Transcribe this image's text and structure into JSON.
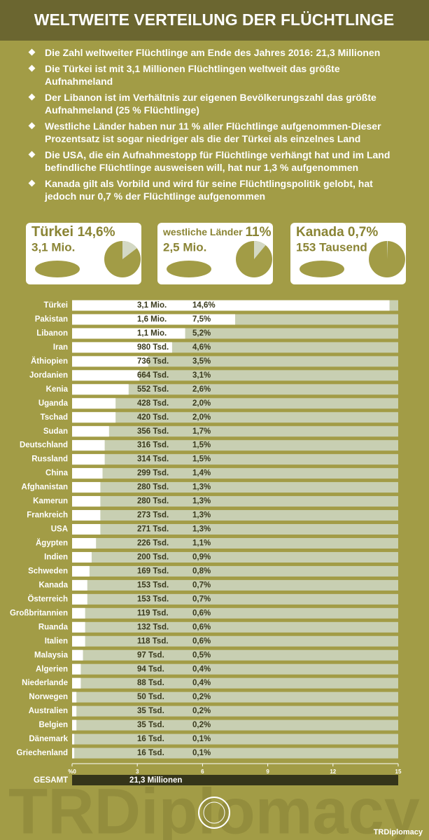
{
  "header": {
    "title": "WELTWEITE VERTEILUNG DER FLÜCHTLINGE"
  },
  "bullets": [
    "Die Zahl weltweiter Flüchtlinge am Ende des Jahres 2016: 21,3 Millionen",
    "Die Türkei ist mit 3,1 Millionen Flüchtlingen weltweit das größte Aufnahmeland",
    "Der Libanon ist im Verhältnis zur eigenen Bevölkerungszahl das größte Aufnahmeland (25 % Flüchtlinge)",
    "Westliche Länder haben nur 11 % aller Flüchtlinge aufgenommen-Dieser Prozentsatz ist sogar niedriger als die der Türkei als einzelnes Land",
    "Die USA, die ein Aufnahmestopp für Flüchtlinge verhängt hat und im Land befindliche Flüchtlinge ausweisen will, hat nur 1,3 % aufgenommen",
    "Kanada gilt als Vorbild und wird für seine Flüchtlingspolitik gelobt, hat jedoch nur 0,7 % der Flüchtlinge aufgenommen"
  ],
  "cards": [
    {
      "name": "Türkei",
      "value": 14.6,
      "value_label": "14,6%",
      "amount": "3,1 Mio."
    },
    {
      "name": "westliche Länder",
      "value": 11,
      "value_label": "11%",
      "amount": "2,5 Mio."
    },
    {
      "name": "Kanada",
      "value": 0.7,
      "value_label": "0,7%",
      "amount": "153 Tausend"
    }
  ],
  "chart_data": {
    "type": "bar",
    "orientation": "horizontal",
    "categories": [
      "Türkei",
      "Pakistan",
      "Libanon",
      "Iran",
      "Äthiopien",
      "Jordanien",
      "Kenia",
      "Uganda",
      "Tschad",
      "Sudan",
      "Deutschland",
      "Russland",
      "China",
      "Afghanistan",
      "Kamerun",
      "Frankreich",
      "USA",
      "Ägypten",
      "Indien",
      "Schweden",
      "Kanada",
      "Österreich",
      "Großbritannien",
      "Ruanda",
      "Italien",
      "Malaysia",
      "Algerien",
      "Niederlande",
      "Norwegen",
      "Australien",
      "Belgien",
      "Dänemark",
      "Griechenland"
    ],
    "values": [
      14.6,
      7.5,
      5.2,
      4.6,
      3.5,
      3.1,
      2.6,
      2.0,
      2.0,
      1.7,
      1.5,
      1.5,
      1.4,
      1.3,
      1.3,
      1.3,
      1.3,
      1.1,
      0.9,
      0.8,
      0.7,
      0.7,
      0.6,
      0.6,
      0.6,
      0.5,
      0.4,
      0.4,
      0.2,
      0.2,
      0.2,
      0.1,
      0.1
    ],
    "value_labels": [
      "14,6%",
      "7,5%",
      "5,2%",
      "4,6%",
      "3,5%",
      "3,1%",
      "2,6%",
      "2,0%",
      "2,0%",
      "1,7%",
      "1,5%",
      "1,5%",
      "1,4%",
      "1,3%",
      "1,3%",
      "1,3%",
      "1,3%",
      "1,1%",
      "0,9%",
      "0,8%",
      "0,7%",
      "0,7%",
      "0,6%",
      "0,6%",
      "0,6%",
      "0,5%",
      "0,4%",
      "0,4%",
      "0,2%",
      "0,2%",
      "0,2%",
      "0,1%",
      "0,1%"
    ],
    "amount_labels": [
      "3,1 Mio.",
      "1,6 Mio.",
      "1,1 Mio.",
      "980 Tsd.",
      "736 Tsd.",
      "664 Tsd.",
      "552 Tsd.",
      "428 Tsd.",
      "420 Tsd.",
      "356 Tsd.",
      "316 Tsd.",
      "314 Tsd.",
      "299 Tsd.",
      "280 Tsd.",
      "280 Tsd.",
      "273 Tsd.",
      "271 Tsd.",
      "226 Tsd.",
      "200 Tsd.",
      "169 Tsd.",
      "153 Tsd.",
      "153 Tsd.",
      "119 Tsd.",
      "132 Tsd.",
      "118 Tsd.",
      "97 Tsd.",
      "94 Tsd.",
      "88 Tsd.",
      "50 Tsd.",
      "35 Tsd.",
      "35 Tsd.",
      "16 Tsd.",
      "16 Tsd."
    ],
    "xlim": [
      0,
      15
    ],
    "xticks": [
      {
        "value": 0,
        "label": "%0"
      },
      3,
      6,
      9,
      12,
      15
    ],
    "total_label": "GESAMT",
    "total_value": "21,3 Millionen"
  },
  "footer": {
    "brand": "TRDiplomacy"
  }
}
